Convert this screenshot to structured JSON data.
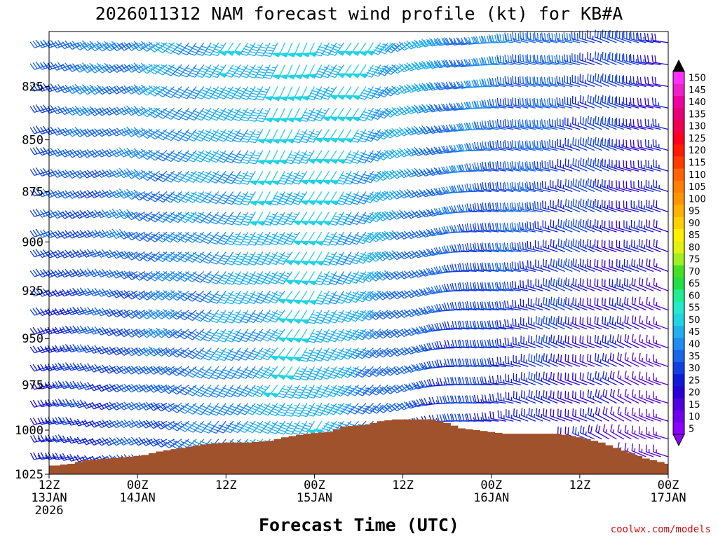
{
  "chart_data": {
    "type": "wind_barb_time_height",
    "title": "2026011312 NAM forecast wind profile (kt) for KB#A",
    "xlabel": "Forecast Time (UTC)",
    "credit": "coolwx.com/models",
    "x_ticks": [
      {
        "hour": 0,
        "line1": "12Z",
        "line2": "13JAN",
        "line3": "2026"
      },
      {
        "hour": 12,
        "line1": "00Z",
        "line2": "14JAN",
        "line3": ""
      },
      {
        "hour": 24,
        "line1": "12Z",
        "line2": "",
        "line3": ""
      },
      {
        "hour": 36,
        "line1": "00Z",
        "line2": "15JAN",
        "line3": ""
      },
      {
        "hour": 48,
        "line1": "12Z",
        "line2": "",
        "line3": ""
      },
      {
        "hour": 60,
        "line1": "00Z",
        "line2": "16JAN",
        "line3": ""
      },
      {
        "hour": 72,
        "line1": "12Z",
        "line2": "",
        "line3": ""
      },
      {
        "hour": 84,
        "line1": "00Z",
        "line2": "17JAN",
        "line3": ""
      }
    ],
    "x_range_hours": [
      0,
      84
    ],
    "y_ticks": [
      825,
      850,
      875,
      900,
      925,
      950,
      975,
      1000,
      1025
    ],
    "y_range_hPa": [
      1025,
      800
    ],
    "y_scale": "log-pressure",
    "pressure_levels": [
      805,
      815,
      825,
      835,
      845,
      855,
      865,
      875,
      885,
      895,
      905,
      915,
      925,
      935,
      945,
      955,
      965,
      975,
      985,
      995,
      1005,
      1015,
      1025
    ],
    "wind_time_step_hours": 1,
    "colorbar": {
      "labels": [
        "5",
        "10",
        "15",
        "20",
        "25",
        "30",
        "35",
        "40",
        "45",
        "50",
        "55",
        "60",
        "65",
        "70",
        "75",
        "80",
        "85",
        "90",
        "95",
        "100",
        "105",
        "110",
        "115",
        "120",
        "125",
        "130",
        "135",
        "140",
        "145",
        "150"
      ],
      "colors": [
        "#8c00ff",
        "#7000ee",
        "#5000e0",
        "#2a00d8",
        "#0f1bd8",
        "#1040e0",
        "#1a66e8",
        "#1e8cf0",
        "#20b0f0",
        "#20d4e4",
        "#22eaca",
        "#20ee90",
        "#22e044",
        "#44e022",
        "#a0f020",
        "#e4f010",
        "#fff000",
        "#ffd000",
        "#ffb000",
        "#ff9400",
        "#ff8000",
        "#ff6400",
        "#ff3c00",
        "#ff1a00",
        "#ff0020",
        "#f00050",
        "#e80078",
        "#f000a0",
        "#f020c8",
        "#ff30ff"
      ]
    },
    "surface_pressure_hPa": [
      [
        0,
        1020
      ],
      [
        1,
        1020
      ],
      [
        3,
        1019
      ],
      [
        5,
        1017
      ],
      [
        8,
        1016
      ],
      [
        11,
        1015
      ],
      [
        13,
        1014
      ],
      [
        15,
        1012
      ],
      [
        18,
        1010
      ],
      [
        21,
        1008
      ],
      [
        24,
        1007
      ],
      [
        27,
        1007
      ],
      [
        30,
        1006
      ],
      [
        32,
        1004
      ],
      [
        35,
        1002
      ],
      [
        38,
        1001
      ],
      [
        40,
        998
      ],
      [
        43,
        997
      ],
      [
        45,
        995
      ],
      [
        47,
        994
      ],
      [
        49,
        994
      ],
      [
        52,
        994
      ],
      [
        54,
        996
      ],
      [
        56,
        999
      ],
      [
        58,
        1000
      ],
      [
        60,
        1001
      ],
      [
        62,
        1002
      ],
      [
        65,
        1002
      ],
      [
        69,
        1002
      ],
      [
        72,
        1004
      ],
      [
        75,
        1007
      ],
      [
        77,
        1010
      ],
      [
        79,
        1013
      ],
      [
        81,
        1016
      ],
      [
        83,
        1018
      ],
      [
        84,
        1019
      ]
    ],
    "wind_regime_nodes": [
      {
        "hour": 0,
        "dir_deg": 248,
        "speed_upper_kt": 35,
        "speed_lower_kt": 22
      },
      {
        "hour": 12,
        "dir_deg": 238,
        "speed_upper_kt": 40,
        "speed_lower_kt": 30
      },
      {
        "hour": 24,
        "dir_deg": 212,
        "speed_upper_kt": 45,
        "speed_lower_kt": 38
      },
      {
        "hour": 36,
        "dir_deg": 205,
        "speed_upper_kt": 50,
        "speed_lower_kt": 48
      },
      {
        "hour": 44,
        "dir_deg": 215,
        "speed_upper_kt": 48,
        "speed_lower_kt": 35
      },
      {
        "hour": 56,
        "dir_deg": 262,
        "speed_upper_kt": 40,
        "speed_lower_kt": 25
      },
      {
        "hour": 66,
        "dir_deg": 280,
        "speed_upper_kt": 36,
        "speed_lower_kt": 22
      },
      {
        "hour": 76,
        "dir_deg": 288,
        "speed_upper_kt": 30,
        "speed_lower_kt": 18
      },
      {
        "hour": 84,
        "dir_deg": 282,
        "speed_upper_kt": 25,
        "speed_lower_kt": 12
      }
    ],
    "ground_color": "#a0522d",
    "grid": false
  }
}
